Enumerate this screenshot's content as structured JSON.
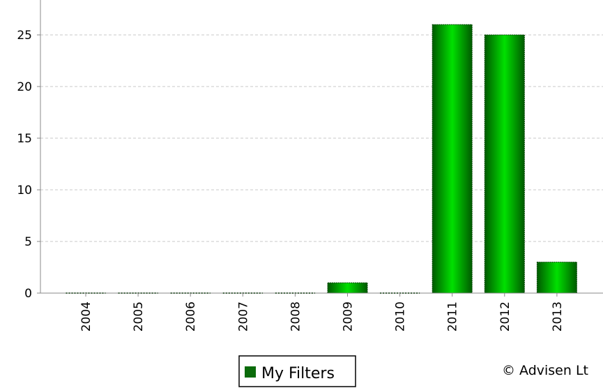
{
  "chart_data": {
    "type": "bar",
    "title": "",
    "xlabel": "",
    "ylabel": "",
    "categories": [
      "2004",
      "2005",
      "2006",
      "2007",
      "2008",
      "2009",
      "2010",
      "2011",
      "2012",
      "2013"
    ],
    "series": [
      {
        "name": "My Filters",
        "values": [
          0,
          0,
          0,
          0,
          0,
          1,
          0,
          26,
          25,
          3
        ]
      }
    ],
    "ylim": [
      0,
      27.5
    ],
    "y_ticks": [
      0,
      5,
      10,
      15,
      20,
      25
    ],
    "y_tick_labels": [
      "0",
      "5",
      "10",
      "15",
      "20",
      "25"
    ],
    "grid": true,
    "legend_position": "bottom-center",
    "colors": {
      "bar_dark": "#006600",
      "bar_light": "#00dd00",
      "grid": "#c8c8c8",
      "axis": "#888888"
    }
  },
  "legend": {
    "items": [
      {
        "label": "My Filters",
        "color": "#0a6b0a"
      }
    ]
  },
  "footer": {
    "copyright": "© Advisen Lt"
  }
}
